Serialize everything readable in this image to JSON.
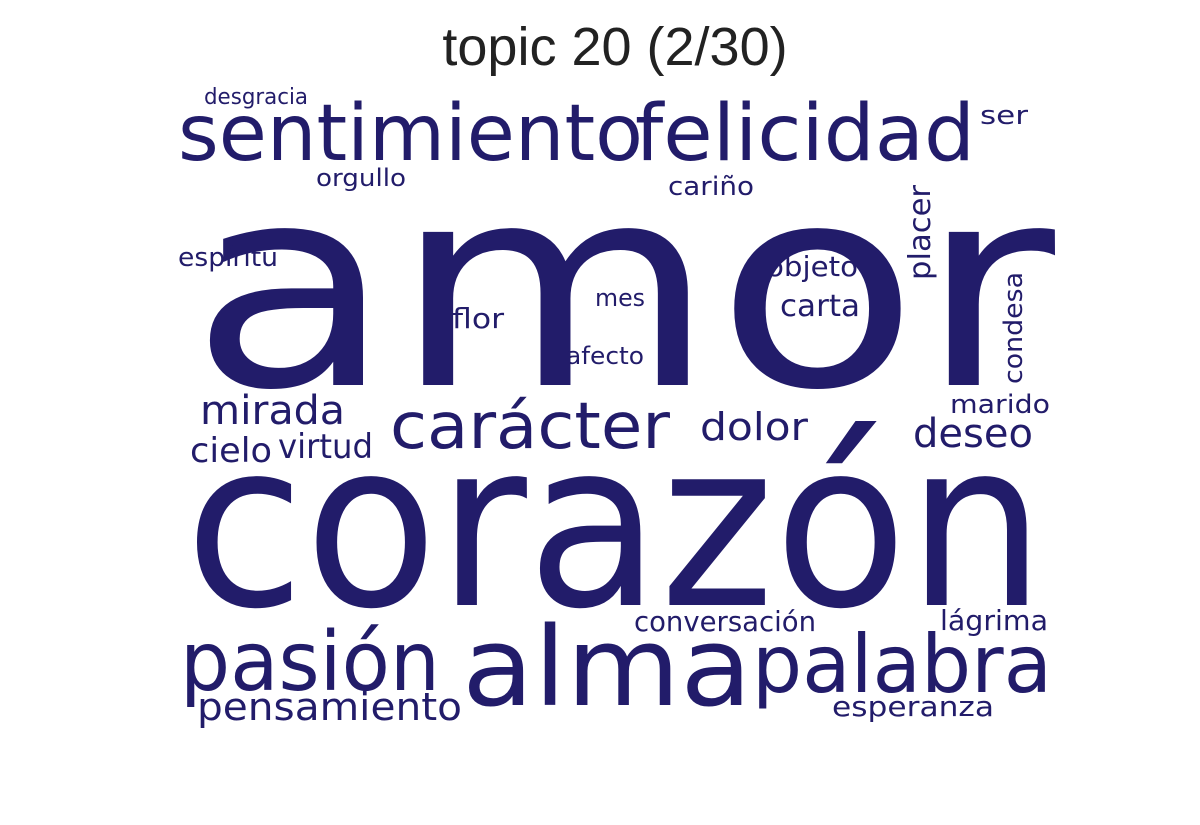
{
  "chart_data": {
    "type": "wordcloud",
    "title": "topic 20 (2/30)",
    "color": "#221c6a",
    "words": [
      {
        "text": "amor",
        "weight": 100
      },
      {
        "text": "corazón",
        "weight": 92
      },
      {
        "text": "alma",
        "weight": 52
      },
      {
        "text": "sentimiento",
        "weight": 38
      },
      {
        "text": "felicidad",
        "weight": 38
      },
      {
        "text": "pasión",
        "weight": 37
      },
      {
        "text": "palabra",
        "weight": 36
      },
      {
        "text": "carácter",
        "weight": 30
      },
      {
        "text": "mirada",
        "weight": 18
      },
      {
        "text": "pensamiento",
        "weight": 17
      },
      {
        "text": "deseo",
        "weight": 17
      },
      {
        "text": "dolor",
        "weight": 16
      },
      {
        "text": "cielo",
        "weight": 15
      },
      {
        "text": "virtud",
        "weight": 15
      },
      {
        "text": "carta",
        "weight": 13
      },
      {
        "text": "placer",
        "weight": 13
      },
      {
        "text": "conversación",
        "weight": 12
      },
      {
        "text": "lágrima",
        "weight": 12
      },
      {
        "text": "esperanza",
        "weight": 12
      },
      {
        "text": "flor",
        "weight": 12
      },
      {
        "text": "objeto",
        "weight": 12
      },
      {
        "text": "condesa",
        "weight": 12
      },
      {
        "text": "espíritu",
        "weight": 11
      },
      {
        "text": "cariño",
        "weight": 11
      },
      {
        "text": "orgullo",
        "weight": 11
      },
      {
        "text": "ser",
        "weight": 11
      },
      {
        "text": "marido",
        "weight": 11
      },
      {
        "text": "afecto",
        "weight": 10
      },
      {
        "text": "mes",
        "weight": 10
      },
      {
        "text": "desgracia",
        "weight": 9
      }
    ]
  }
}
